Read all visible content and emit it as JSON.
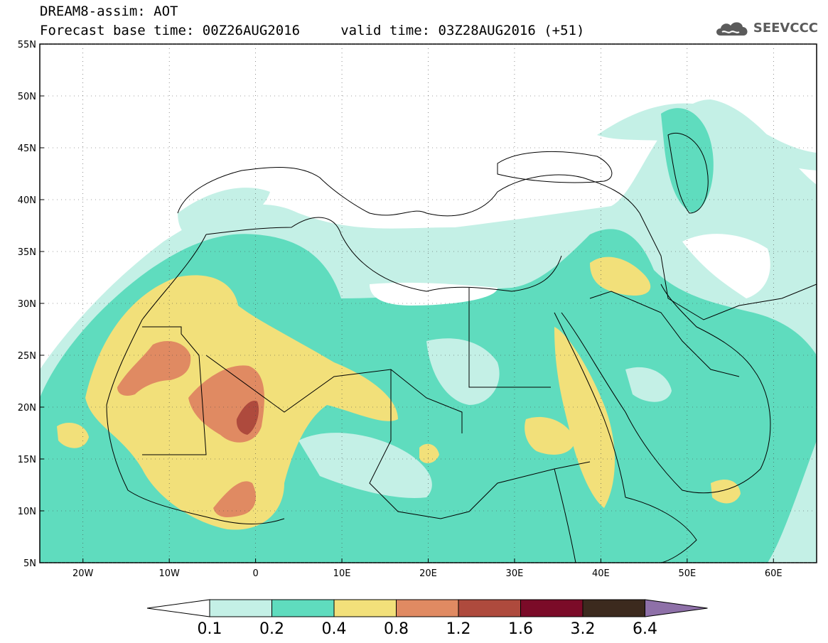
{
  "header": {
    "title_line1": "DREAM8-assim: AOT",
    "title_line2": "Forecast base time: 00Z26AUG2016     valid time: 03Z28AUG2016 (+51)"
  },
  "logo": {
    "icon": "cloud-logo-icon",
    "text": "SEEVCCC"
  },
  "map": {
    "lat_labels": [
      "55N",
      "50N",
      "45N",
      "40N",
      "35N",
      "30N",
      "25N",
      "20N",
      "15N",
      "10N",
      "5N"
    ],
    "lon_labels": [
      "20W",
      "10W",
      "0",
      "10E",
      "20E",
      "30E",
      "40E",
      "50E",
      "60E"
    ],
    "lat_values": [
      55,
      50,
      45,
      40,
      35,
      30,
      25,
      20,
      15,
      10,
      5
    ],
    "lon_values": [
      -20,
      -10,
      0,
      10,
      20,
      30,
      40,
      50,
      60
    ],
    "lon_range": [
      -25,
      65
    ],
    "lat_range": [
      5,
      55
    ],
    "field": "AOT"
  },
  "colorbar": {
    "labels": [
      "0.1",
      "0.2",
      "0.4",
      "0.8",
      "1.2",
      "1.6",
      "3.2",
      "6.4"
    ],
    "colors": [
      "#ffffff",
      "#c4f0e6",
      "#5fdcbe",
      "#f2e07a",
      "#e08a62",
      "#ae4a3d",
      "#7b0b28",
      "#3c2a1e",
      "#8e70a8"
    ]
  }
}
